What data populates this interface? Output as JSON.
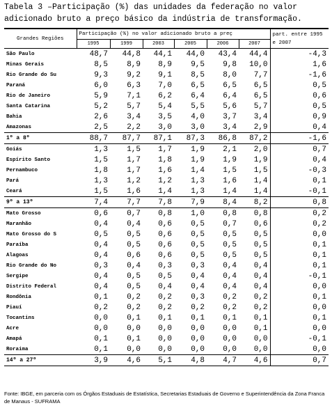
{
  "title": "Tabela 3 –Participação (%) das unidades da federação no valor adicionado bruto a preço básico da indústria de transformação.",
  "table": {
    "header": {
      "region": "Grandes Regiões",
      "participation": "Participação (%) no valor adicionado bruto a preç",
      "change": "part. entre 1995 e 2007",
      "years": [
        "1995",
        "1999",
        "2003",
        "2005",
        "2006",
        "2007"
      ]
    },
    "groups": [
      {
        "rows": [
          [
            "São Paulo",
            "48,7",
            "44,8",
            "44,1",
            "44,0",
            "43,4",
            "44,4",
            "-4,3"
          ],
          [
            "Minas Gerais",
            "8,5",
            "8,9",
            "8,9",
            "9,5",
            "9,8",
            "10,0",
            "1,6"
          ],
          [
            "Rio Grande do Su",
            "9,3",
            "9,2",
            "9,1",
            "8,5",
            "8,0",
            "7,7",
            "-1,6"
          ],
          [
            "Paraná",
            "6,0",
            "6,3",
            "7,0",
            "6,5",
            "6,5",
            "6,5",
            "0,5"
          ],
          [
            "Rio de Janeiro",
            "5,9",
            "7,1",
            "6,2",
            "6,4",
            "6,4",
            "6,5",
            "0,6"
          ],
          [
            "Santa Catarina",
            "5,2",
            "5,7",
            "5,4",
            "5,5",
            "5,6",
            "5,7",
            "0,5"
          ],
          [
            "Bahia",
            "2,6",
            "3,4",
            "3,5",
            "4,0",
            "3,7",
            "3,4",
            "0,9"
          ],
          [
            "Amazonas",
            "2,5",
            "2,2",
            "3,0",
            "3,0",
            "3,4",
            "2,9",
            "0,4"
          ]
        ],
        "total": [
          "1º a 8º",
          "88,7",
          "87,7",
          "87,1",
          "87,3",
          "86,8",
          "87,2",
          "-1,6"
        ]
      },
      {
        "rows": [
          [
            "Goiás",
            "1,3",
            "1,5",
            "1,7",
            "1,9",
            "2,1",
            "2,0",
            "0,7"
          ],
          [
            "Espírito Santo",
            "1,5",
            "1,7",
            "1,8",
            "1,9",
            "1,9",
            "1,9",
            "0,4"
          ],
          [
            "Pernambuco",
            "1,8",
            "1,7",
            "1,6",
            "1,4",
            "1,5",
            "1,5",
            "-0,3"
          ],
          [
            "Pará",
            "1,3",
            "1,2",
            "1,2",
            "1,3",
            "1,6",
            "1,4",
            "0,1"
          ],
          [
            "Ceará",
            "1,5",
            "1,6",
            "1,4",
            "1,3",
            "1,4",
            "1,4",
            "-0,1"
          ]
        ],
        "total": [
          "9º a 13º",
          "7,4",
          "7,7",
          "7,8",
          "7,9",
          "8,4",
          "8,2",
          "0,8"
        ]
      },
      {
        "rows": [
          [
            "Mato Grosso",
            "0,6",
            "0,7",
            "0,8",
            "1,0",
            "0,8",
            "0,8",
            "0,2"
          ],
          [
            "Maranhão",
            "0,4",
            "0,4",
            "0,6",
            "0,5",
            "0,7",
            "0,6",
            "0,2"
          ],
          [
            "Mato Grosso do S",
            "0,5",
            "0,5",
            "0,6",
            "0,5",
            "0,5",
            "0,5",
            "0,0"
          ],
          [
            "Paraíba",
            "0,4",
            "0,5",
            "0,6",
            "0,5",
            "0,5",
            "0,5",
            "0,1"
          ],
          [
            "Alagoas",
            "0,4",
            "0,6",
            "0,6",
            "0,5",
            "0,5",
            "0,5",
            "0,1"
          ],
          [
            "Rio Grande do No",
            "0,3",
            "0,4",
            "0,3",
            "0,3",
            "0,4",
            "0,4",
            "0,1"
          ],
          [
            "Sergipe",
            "0,4",
            "0,5",
            "0,5",
            "0,4",
            "0,4",
            "0,4",
            "-0,1"
          ],
          [
            "Distrito Federal",
            "0,4",
            "0,5",
            "0,4",
            "0,4",
            "0,4",
            "0,4",
            "0,0"
          ],
          [
            "Rondônia",
            "0,1",
            "0,2",
            "0,2",
            "0,3",
            "0,2",
            "0,2",
            "0,1"
          ],
          [
            "Piauí",
            "0,2",
            "0,2",
            "0,2",
            "0,2",
            "0,2",
            "0,2",
            "0,0"
          ],
          [
            "Tocantins",
            "0,0",
            "0,1",
            "0,1",
            "0,1",
            "0,1",
            "0,1",
            "0,1"
          ],
          [
            "Acre",
            "0,0",
            "0,0",
            "0,0",
            "0,0",
            "0,0",
            "0,1",
            "0,0"
          ],
          [
            "Amapá",
            "0,1",
            "0,1",
            "0,0",
            "0,0",
            "0,0",
            "0,0",
            "-0,1"
          ],
          [
            "Roraima",
            "0,1",
            "0,0",
            "0,0",
            "0,0",
            "0,0",
            "0,0",
            "0,0"
          ]
        ],
        "total": [
          "14º a 27º",
          "3,9",
          "4,6",
          "5,1",
          "4,8",
          "4,7",
          "4,6",
          "0,7"
        ]
      }
    ]
  },
  "footer": "Fonte: IBGE, em parceria com os Órgãos Estaduais de Estatística, Secretarias Estaduais de Governo e Superintendência da Zona Franca de Manaus - SUFRAMA"
}
